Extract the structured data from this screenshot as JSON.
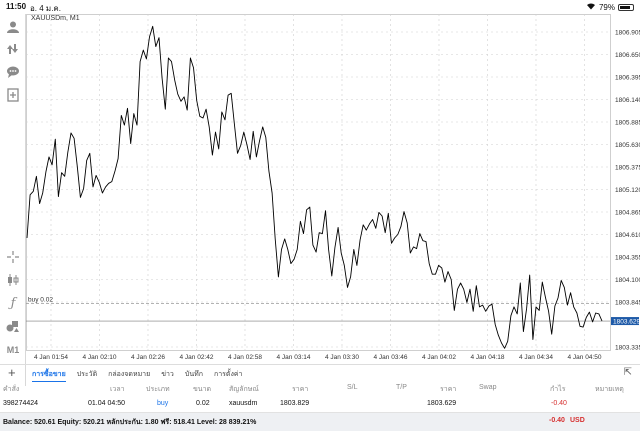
{
  "status_bar": {
    "time": "11:50",
    "date": "อ. 4 ม.ค.",
    "battery": "79%",
    "wifi_icon": "wifi-icon"
  },
  "chart": {
    "symbol_label": "XAUUSDm, M1",
    "price_label": "buy 0.02",
    "current_price_badge": "1803.629",
    "colors": {
      "line": "#000000",
      "grid": "#d0d0d0",
      "badge": "#1e5aa8"
    },
    "chart_data": {
      "type": "line",
      "title": "XAUUSDm, M1",
      "ylim": [
        1803.2,
        1807.0
      ],
      "y_ticks": [
        "1806.905",
        "1806.650",
        "1806.395",
        "1806.140",
        "1805.885",
        "1805.630",
        "1805.375",
        "1805.120",
        "1804.865",
        "1804.610",
        "1804.355",
        "1804.100",
        "1803.845",
        "1803.335"
      ],
      "x_ticks": [
        "4 Jan 01:54",
        "4 Jan 02:10",
        "4 Jan 02:26",
        "4 Jan 02:42",
        "4 Jan 02:58",
        "4 Jan 03:14",
        "4 Jan 03:30",
        "4 Jan 03:46",
        "4 Jan 04:02",
        "4 Jan 04:18",
        "4 Jan 04:34",
        "4 Jan 04:50"
      ],
      "grid": true,
      "levels": [
        {
          "name": "buy 0.02",
          "value": 1803.829,
          "style": "dashed"
        },
        {
          "name": "bid",
          "value": 1803.629,
          "style": "solid"
        }
      ],
      "series": [
        {
          "values": [
            1804.57,
            1805.06,
            1805.1,
            1805.27,
            1804.96,
            1805.08,
            1805.32,
            1805.49,
            1805.4,
            1805.69,
            1805.04,
            1805.31,
            1805.27,
            1805.54,
            1805.76,
            1805.7,
            1805.38,
            1805.03,
            1805.13,
            1805.45,
            1805.53,
            1805.15,
            1805.28,
            1805.2,
            1805.08,
            1805.15,
            1805.19,
            1805.21,
            1805.33,
            1805.47,
            1805.96,
            1805.85,
            1806.04,
            1805.64,
            1805.98,
            1805.85,
            1806.57,
            1806.7,
            1806.6,
            1806.85,
            1806.97,
            1806.74,
            1806.84,
            1806.38,
            1806.03,
            1806.61,
            1806.57,
            1806.36,
            1806.2,
            1806.12,
            1806.17,
            1806.02,
            1806.61,
            1806.5,
            1806.13,
            1805.95,
            1805.93,
            1806.03,
            1805.83,
            1805.51,
            1805.77,
            1805.58,
            1806.0,
            1805.91,
            1806.19,
            1806.21,
            1805.86,
            1805.53,
            1805.62,
            1805.77,
            1805.63,
            1805.46,
            1805.78,
            1805.49,
            1805.67,
            1805.83,
            1805.71,
            1805.33,
            1805.08,
            1804.56,
            1804.13,
            1804.44,
            1804.56,
            1804.44,
            1804.28,
            1804.33,
            1804.44,
            1804.76,
            1804.62,
            1804.89,
            1804.92,
            1804.49,
            1804.41,
            1804.63,
            1804.62,
            1804.88,
            1804.44,
            1804.14,
            1804.46,
            1804.69,
            1804.4,
            1804.26,
            1804.01,
            1804.13,
            1804.44,
            1804.26,
            1804.55,
            1804.72,
            1804.66,
            1804.73,
            1804.78,
            1804.68,
            1804.86,
            1804.82,
            1804.63,
            1804.85,
            1804.51,
            1804.57,
            1804.61,
            1804.7,
            1804.87,
            1804.74,
            1804.4,
            1804.47,
            1804.45,
            1804.62,
            1804.54,
            1804.53,
            1804.28,
            1804.16,
            1804.16,
            1804.26,
            1804.23,
            1804.07,
            1804.19,
            1804.1,
            1803.75,
            1803.99,
            1804.06,
            1803.99,
            1803.84,
            1803.99,
            1803.74,
            1804.03,
            1803.79,
            1803.81,
            1803.74,
            1803.8,
            1803.82,
            1803.59,
            1803.47,
            1803.38,
            1803.32,
            1803.4,
            1803.69,
            1803.79,
            1803.71,
            1804.06,
            1803.51,
            1803.77,
            1804.15,
            1803.42,
            1803.79,
            1803.75,
            1804.07,
            1803.9,
            1803.74,
            1803.48,
            1803.8,
            1803.89,
            1804.09,
            1804.01,
            1803.81,
            1803.95,
            1803.79,
            1803.72,
            1803.57,
            1803.56,
            1803.67,
            1803.73,
            1803.62,
            1803.72,
            1803.71,
            1803.63
          ]
        }
      ]
    }
  },
  "left_tools": [
    {
      "name": "account-icon"
    },
    {
      "name": "trade-icon"
    },
    {
      "name": "chat-icon"
    },
    {
      "name": "add-icon"
    },
    {
      "name": "crosshair-icon"
    },
    {
      "name": "candles-icon"
    },
    {
      "name": "indicator-icon"
    },
    {
      "name": "objects-icon"
    },
    {
      "name": "timeframe-icon",
      "label": "M1"
    }
  ],
  "tabs": {
    "items": [
      {
        "label": "การซื้อขาย",
        "active": true
      },
      {
        "label": "ประวัติ"
      },
      {
        "label": "กล่องจดหมาย"
      },
      {
        "label": "ข่าว"
      },
      {
        "label": "บันทึก"
      },
      {
        "label": "การตั้งค่า"
      }
    ]
  },
  "table": {
    "headers": [
      "คำสั่ง",
      "เวลา",
      "ประเภท",
      "ขนาด",
      "สัญลักษณ์",
      "ราคา",
      "S/L",
      "T/P",
      "ราคา",
      "Swap",
      "กำไร",
      "หมายเหตุ"
    ],
    "row": {
      "order": "398274424",
      "time": "01.04 04:50",
      "type": "buy",
      "volume": "0.02",
      "symbol": "xauusdm",
      "open_price": "1803.829",
      "current_price": "1803.629",
      "profit": "-0.40"
    }
  },
  "balance": {
    "text": "Balance: 520.61 Equity: 520.21 หลักประกัน: 1.80 ฟรี: 518.41 Level: 28 839.21%",
    "profit": "-0.40",
    "currency": "USD"
  }
}
